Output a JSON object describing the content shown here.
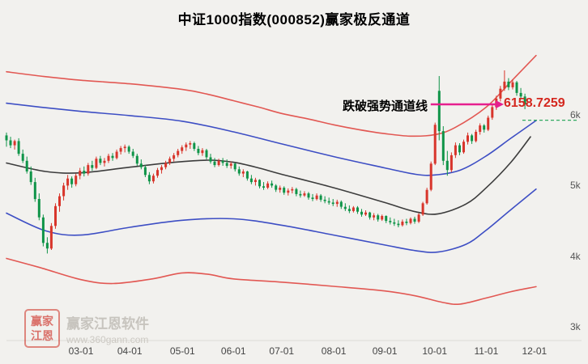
{
  "title": "中证1000指数(000852)赢家极反通道",
  "annotation": {
    "text": "跌破强势通道线",
    "price_label": "6158.7259"
  },
  "watermark": {
    "name": "赢家江恩软件",
    "url": "www.360gann.com",
    "seal_line1": "赢家",
    "seal_line2": "江恩"
  },
  "chart_data": {
    "type": "candlestick",
    "title": "中证1000指数(000852)赢家极反通道",
    "last_price": 6158.7259,
    "ylim": [
      2830,
      7120
    ],
    "x_span": [
      0,
      0.925
    ],
    "grid": false,
    "y_ticks": [
      {
        "label": "6k",
        "value": 6000
      },
      {
        "label": "5k",
        "value": 5000
      },
      {
        "label": "4k",
        "value": 4000
      },
      {
        "label": "3k",
        "value": 3000
      }
    ],
    "x_ticks": [
      {
        "label": "03-01",
        "t": 0.133
      },
      {
        "label": "04-01",
        "t": 0.22
      },
      {
        "label": "05-01",
        "t": 0.314
      },
      {
        "label": "06-01",
        "t": 0.405
      },
      {
        "label": "07-01",
        "t": 0.491
      },
      {
        "label": "08-01",
        "t": 0.584
      },
      {
        "label": "09-01",
        "t": 0.675
      },
      {
        "label": "10-01",
        "t": 0.764
      },
      {
        "label": "11-01",
        "t": 0.856
      },
      {
        "label": "12-01",
        "t": 0.942
      }
    ],
    "colors": {
      "up": "#d8352b",
      "down": "#0f9448",
      "arrow": "#e61f8e",
      "dashed": "#2faa60",
      "price_label": "#d4271e"
    },
    "candles": [
      [
        5720,
        5760,
        5560,
        5650
      ],
      [
        5650,
        5700,
        5540,
        5580
      ],
      [
        5580,
        5660,
        5520,
        5640
      ],
      [
        5640,
        5680,
        5430,
        5460
      ],
      [
        5460,
        5520,
        5330,
        5360
      ],
      [
        5360,
        5420,
        5180,
        5210
      ],
      [
        5210,
        5280,
        5020,
        5060
      ],
      [
        5060,
        5120,
        4780,
        4820
      ],
      [
        4820,
        4900,
        4520,
        4560
      ],
      [
        4560,
        4600,
        4150,
        4200
      ],
      [
        4200,
        4280,
        4050,
        4120
      ],
      [
        4120,
        4480,
        4100,
        4440
      ],
      [
        4440,
        4760,
        4400,
        4720
      ],
      [
        4720,
        4900,
        4640,
        4860
      ],
      [
        4860,
        5050,
        4800,
        5010
      ],
      [
        5010,
        5160,
        4950,
        5110
      ],
      [
        5110,
        5140,
        4980,
        5030
      ],
      [
        5030,
        5180,
        5000,
        5150
      ],
      [
        5150,
        5260,
        5100,
        5220
      ],
      [
        5220,
        5280,
        5140,
        5180
      ],
      [
        5180,
        5330,
        5150,
        5300
      ],
      [
        5300,
        5360,
        5220,
        5260
      ],
      [
        5260,
        5420,
        5240,
        5390
      ],
      [
        5390,
        5430,
        5300,
        5330
      ],
      [
        5330,
        5400,
        5280,
        5360
      ],
      [
        5360,
        5460,
        5330,
        5430
      ],
      [
        5430,
        5470,
        5360,
        5400
      ],
      [
        5400,
        5520,
        5380,
        5490
      ],
      [
        5490,
        5570,
        5450,
        5540
      ],
      [
        5540,
        5590,
        5480,
        5560
      ],
      [
        5560,
        5580,
        5460,
        5490
      ],
      [
        5490,
        5530,
        5400,
        5430
      ],
      [
        5430,
        5460,
        5290,
        5320
      ],
      [
        5320,
        5380,
        5240,
        5270
      ],
      [
        5270,
        5300,
        5130,
        5160
      ],
      [
        5160,
        5200,
        5030,
        5070
      ],
      [
        5070,
        5180,
        5040,
        5150
      ],
      [
        5150,
        5260,
        5120,
        5230
      ],
      [
        5230,
        5300,
        5180,
        5270
      ],
      [
        5270,
        5360,
        5240,
        5330
      ],
      [
        5330,
        5420,
        5300,
        5390
      ],
      [
        5390,
        5470,
        5350,
        5440
      ],
      [
        5440,
        5530,
        5410,
        5500
      ],
      [
        5500,
        5580,
        5460,
        5550
      ],
      [
        5550,
        5620,
        5500,
        5590
      ],
      [
        5590,
        5640,
        5530,
        5610
      ],
      [
        5610,
        5630,
        5500,
        5530
      ],
      [
        5530,
        5570,
        5440,
        5470
      ],
      [
        5470,
        5540,
        5430,
        5510
      ],
      [
        5510,
        5530,
        5380,
        5410
      ],
      [
        5410,
        5460,
        5320,
        5350
      ],
      [
        5350,
        5400,
        5270,
        5300
      ],
      [
        5300,
        5390,
        5280,
        5360
      ],
      [
        5360,
        5400,
        5290,
        5330
      ],
      [
        5330,
        5380,
        5260,
        5290
      ],
      [
        5290,
        5350,
        5250,
        5320
      ],
      [
        5320,
        5330,
        5210,
        5240
      ],
      [
        5240,
        5280,
        5150,
        5180
      ],
      [
        5180,
        5240,
        5130,
        5210
      ],
      [
        5210,
        5220,
        5080,
        5110
      ],
      [
        5110,
        5160,
        5030,
        5060
      ],
      [
        5060,
        5120,
        5010,
        5090
      ],
      [
        5090,
        5100,
        4970,
        5000
      ],
      [
        5000,
        5060,
        4950,
        4980
      ],
      [
        4980,
        5070,
        4960,
        5040
      ],
      [
        5040,
        5080,
        4980,
        5010
      ],
      [
        5010,
        5030,
        4920,
        4950
      ],
      [
        4950,
        5010,
        4910,
        4980
      ],
      [
        4980,
        5000,
        4880,
        4910
      ],
      [
        4910,
        4970,
        4870,
        4940
      ],
      [
        4940,
        4990,
        4900,
        4960
      ],
      [
        4960,
        4980,
        4860,
        4890
      ],
      [
        4890,
        4940,
        4840,
        4870
      ],
      [
        4870,
        4930,
        4850,
        4900
      ],
      [
        4900,
        4920,
        4810,
        4840
      ],
      [
        4840,
        4890,
        4790,
        4820
      ],
      [
        4820,
        4900,
        4800,
        4870
      ],
      [
        4870,
        4890,
        4780,
        4810
      ],
      [
        4810,
        4860,
        4760,
        4790
      ],
      [
        4790,
        4840,
        4740,
        4770
      ],
      [
        4770,
        4820,
        4720,
        4750
      ],
      [
        4750,
        4810,
        4710,
        4780
      ],
      [
        4780,
        4800,
        4680,
        4710
      ],
      [
        4710,
        4760,
        4650,
        4680
      ],
      [
        4680,
        4730,
        4620,
        4650
      ],
      [
        4650,
        4720,
        4630,
        4700
      ],
      [
        4700,
        4720,
        4610,
        4640
      ],
      [
        4640,
        4680,
        4570,
        4600
      ],
      [
        4600,
        4660,
        4580,
        4630
      ],
      [
        4630,
        4640,
        4530,
        4560
      ],
      [
        4560,
        4620,
        4520,
        4590
      ],
      [
        4590,
        4610,
        4500,
        4530
      ],
      [
        4530,
        4600,
        4510,
        4580
      ],
      [
        4580,
        4590,
        4480,
        4510
      ],
      [
        4510,
        4560,
        4460,
        4490
      ],
      [
        4490,
        4540,
        4440,
        4470
      ],
      [
        4470,
        4520,
        4420,
        4450
      ],
      [
        4450,
        4530,
        4430,
        4500
      ],
      [
        4500,
        4540,
        4450,
        4480
      ],
      [
        4480,
        4560,
        4460,
        4540
      ],
      [
        4540,
        4570,
        4470,
        4500
      ],
      [
        4500,
        4620,
        4480,
        4600
      ],
      [
        4600,
        4780,
        4580,
        4760
      ],
      [
        4760,
        4980,
        4740,
        4950
      ],
      [
        4950,
        5350,
        4930,
        5320
      ],
      [
        5320,
        5900,
        5300,
        5870
      ],
      [
        6350,
        6560,
        5650,
        5780
      ],
      [
        5780,
        5850,
        5300,
        5360
      ],
      [
        5360,
        5500,
        5150,
        5230
      ],
      [
        5230,
        5480,
        5200,
        5440
      ],
      [
        5440,
        5620,
        5400,
        5580
      ],
      [
        5580,
        5610,
        5440,
        5480
      ],
      [
        5480,
        5660,
        5460,
        5630
      ],
      [
        5630,
        5760,
        5590,
        5720
      ],
      [
        5720,
        5740,
        5600,
        5640
      ],
      [
        5640,
        5800,
        5620,
        5770
      ],
      [
        5770,
        5890,
        5730,
        5860
      ],
      [
        5860,
        5880,
        5760,
        5800
      ],
      [
        5800,
        6000,
        5780,
        5970
      ],
      [
        5970,
        6150,
        5940,
        6120
      ],
      [
        6120,
        6280,
        6080,
        6240
      ],
      [
        6240,
        6420,
        6200,
        6380
      ],
      [
        6380,
        6640,
        6350,
        6480
      ],
      [
        6480,
        6530,
        6360,
        6400
      ],
      [
        6400,
        6510,
        6370,
        6470
      ],
      [
        6470,
        6490,
        6280,
        6320
      ],
      [
        6320,
        6390,
        6230,
        6270
      ],
      [
        6270,
        6310,
        6090,
        6158.73
      ]
    ],
    "series": [
      {
        "name": "upper-outer-red",
        "color": "#e25853",
        "width": 1.6,
        "points": [
          [
            0.0,
            6620
          ],
          [
            0.06,
            6560
          ],
          [
            0.133,
            6500
          ],
          [
            0.22,
            6450
          ],
          [
            0.314,
            6370
          ],
          [
            0.36,
            6300
          ],
          [
            0.405,
            6210
          ],
          [
            0.45,
            6120
          ],
          [
            0.491,
            6030
          ],
          [
            0.54,
            5950
          ],
          [
            0.584,
            5870
          ],
          [
            0.63,
            5800
          ],
          [
            0.675,
            5745
          ],
          [
            0.72,
            5710
          ],
          [
            0.764,
            5730
          ],
          [
            0.8,
            5830
          ],
          [
            0.856,
            6120
          ],
          [
            0.9,
            6480
          ],
          [
            0.945,
            6850
          ]
        ]
      },
      {
        "name": "upper-inner-blue",
        "color": "#3d4ec4",
        "width": 1.6,
        "points": [
          [
            0.0,
            6175
          ],
          [
            0.06,
            6120
          ],
          [
            0.133,
            6060
          ],
          [
            0.22,
            6000
          ],
          [
            0.314,
            5920
          ],
          [
            0.405,
            5770
          ],
          [
            0.491,
            5600
          ],
          [
            0.584,
            5420
          ],
          [
            0.675,
            5260
          ],
          [
            0.73,
            5170
          ],
          [
            0.764,
            5160
          ],
          [
            0.81,
            5230
          ],
          [
            0.856,
            5430
          ],
          [
            0.9,
            5680
          ],
          [
            0.945,
            5930
          ]
        ]
      },
      {
        "name": "middle-black",
        "color": "#3c3c3c",
        "width": 1.6,
        "points": [
          [
            0.0,
            5330
          ],
          [
            0.07,
            5210
          ],
          [
            0.133,
            5190
          ],
          [
            0.22,
            5270
          ],
          [
            0.3,
            5340
          ],
          [
            0.36,
            5370
          ],
          [
            0.405,
            5340
          ],
          [
            0.45,
            5260
          ],
          [
            0.491,
            5170
          ],
          [
            0.584,
            4980
          ],
          [
            0.675,
            4770
          ],
          [
            0.73,
            4640
          ],
          [
            0.77,
            4610
          ],
          [
            0.82,
            4750
          ],
          [
            0.856,
            4980
          ],
          [
            0.9,
            5340
          ],
          [
            0.935,
            5700
          ]
        ]
      },
      {
        "name": "lower-inner-blue",
        "color": "#3d4ec4",
        "width": 1.6,
        "points": [
          [
            0.0,
            4620
          ],
          [
            0.07,
            4370
          ],
          [
            0.133,
            4310
          ],
          [
            0.22,
            4420
          ],
          [
            0.314,
            4520
          ],
          [
            0.405,
            4540
          ],
          [
            0.491,
            4450
          ],
          [
            0.584,
            4310
          ],
          [
            0.675,
            4170
          ],
          [
            0.73,
            4090
          ],
          [
            0.77,
            4070
          ],
          [
            0.82,
            4180
          ],
          [
            0.856,
            4380
          ],
          [
            0.9,
            4670
          ],
          [
            0.945,
            4960
          ]
        ]
      },
      {
        "name": "lower-outer-red",
        "color": "#e25853",
        "width": 1.6,
        "points": [
          [
            0.0,
            3980
          ],
          [
            0.06,
            3850
          ],
          [
            0.133,
            3680
          ],
          [
            0.19,
            3625
          ],
          [
            0.26,
            3690
          ],
          [
            0.314,
            3775
          ],
          [
            0.36,
            3755
          ],
          [
            0.405,
            3690
          ],
          [
            0.491,
            3645
          ],
          [
            0.584,
            3585
          ],
          [
            0.675,
            3520
          ],
          [
            0.73,
            3450
          ],
          [
            0.78,
            3355
          ],
          [
            0.81,
            3335
          ],
          [
            0.856,
            3420
          ],
          [
            0.9,
            3510
          ],
          [
            0.945,
            3580
          ]
        ]
      }
    ],
    "annotations": {
      "text": "跌破强势通道线",
      "price_label": "6158.7259",
      "arrow": {
        "t_start": 0.757,
        "t_end": 0.873,
        "price": 6158.7259
      },
      "dashed_line": {
        "level": 5935,
        "t_start": 0.9205,
        "t_end": 1.02
      }
    }
  }
}
